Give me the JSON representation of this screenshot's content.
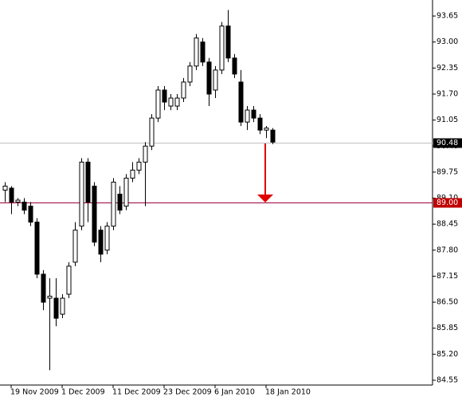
{
  "chart_data": {
    "type": "candlestick",
    "categories": [
      null,
      "19 Nov 2009",
      null,
      null,
      null,
      null,
      null,
      null,
      null,
      "1 Dec 2009",
      null,
      null,
      null,
      null,
      null,
      null,
      null,
      "11 Dec 2009",
      null,
      null,
      null,
      null,
      null,
      null,
      null,
      "23 Dec 2009",
      null,
      null,
      null,
      null,
      null,
      null,
      null,
      "6 Jan 2010",
      null,
      null,
      null,
      null,
      null,
      null,
      null,
      "18 Jan 2010",
      null
    ],
    "open": [
      89.3,
      89.35,
      89.0,
      89.0,
      88.9,
      88.5,
      87.2,
      86.6,
      86.6,
      86.2,
      86.7,
      87.5,
      88.4,
      90.0,
      89.4,
      88.3,
      87.8,
      88.4,
      89.2,
      88.9,
      89.6,
      89.8,
      90.0,
      90.4,
      91.1,
      91.8,
      91.4,
      91.4,
      91.6,
      92.0,
      92.4,
      93.0,
      92.5,
      91.8,
      92.3,
      93.4,
      92.6,
      92.0,
      91.0,
      91.3,
      91.1,
      90.8,
      90.8
    ],
    "high": [
      89.5,
      89.4,
      89.1,
      89.1,
      89.0,
      88.6,
      87.3,
      87.1,
      87.1,
      86.7,
      87.5,
      88.5,
      90.1,
      90.1,
      89.5,
      88.4,
      88.5,
      89.6,
      89.4,
      89.7,
      90.0,
      90.1,
      90.5,
      91.2,
      91.9,
      91.9,
      91.7,
      91.7,
      92.1,
      92.5,
      93.2,
      93.1,
      92.6,
      92.4,
      93.5,
      93.8,
      92.7,
      92.3,
      91.4,
      91.4,
      91.2,
      90.9,
      90.85
    ],
    "low": [
      89.0,
      88.7,
      88.9,
      88.7,
      88.4,
      87.1,
      86.3,
      84.8,
      85.9,
      86.1,
      86.6,
      87.4,
      88.3,
      88.5,
      87.9,
      87.5,
      87.7,
      88.3,
      88.7,
      88.8,
      89.5,
      89.7,
      88.9,
      90.3,
      91.0,
      91.3,
      91.3,
      91.3,
      91.5,
      91.9,
      92.3,
      92.4,
      91.4,
      91.6,
      92.2,
      92.5,
      92.1,
      90.9,
      90.8,
      91.0,
      90.7,
      90.6,
      90.45
    ],
    "close": [
      89.4,
      89.0,
      89.05,
      88.8,
      88.5,
      87.2,
      86.5,
      86.65,
      86.1,
      86.6,
      87.4,
      88.3,
      90.0,
      89.0,
      88.0,
      87.7,
      88.4,
      89.5,
      88.8,
      89.6,
      89.8,
      90.0,
      90.4,
      91.1,
      91.8,
      91.5,
      91.6,
      91.6,
      92.0,
      92.4,
      93.1,
      92.5,
      91.7,
      92.3,
      93.4,
      92.6,
      92.2,
      91.0,
      91.3,
      91.1,
      90.8,
      90.85,
      90.5
    ],
    "ylim": [
      84.43,
      94.05
    ],
    "yticks": [
      {
        "value": 93.65,
        "label": "93.65"
      },
      {
        "value": 93.0,
        "label": "93.00"
      },
      {
        "value": 92.35,
        "label": "92.35"
      },
      {
        "value": 91.7,
        "label": "91.70"
      },
      {
        "value": 91.05,
        "label": "91.05"
      },
      {
        "value": 90.4,
        "label": "90.40"
      },
      {
        "value": 89.75,
        "label": "89.75"
      },
      {
        "value": 89.1,
        "label": "89.10"
      },
      {
        "value": 88.45,
        "label": "88.45"
      },
      {
        "value": 87.8,
        "label": "87.80"
      },
      {
        "value": 87.15,
        "label": "87.15"
      },
      {
        "value": 86.5,
        "label": "86.50"
      },
      {
        "value": 85.85,
        "label": "85.85"
      },
      {
        "value": 85.2,
        "label": "85.20"
      },
      {
        "value": 84.55,
        "label": "84.55"
      }
    ],
    "lines": [
      {
        "value": 90.48,
        "label": "90.48",
        "color": "#c0c0c0",
        "label_color": "#000000"
      },
      {
        "value": 89.0,
        "label": "89.00",
        "color": "#a0003c",
        "label_color": "#c00000"
      }
    ]
  }
}
